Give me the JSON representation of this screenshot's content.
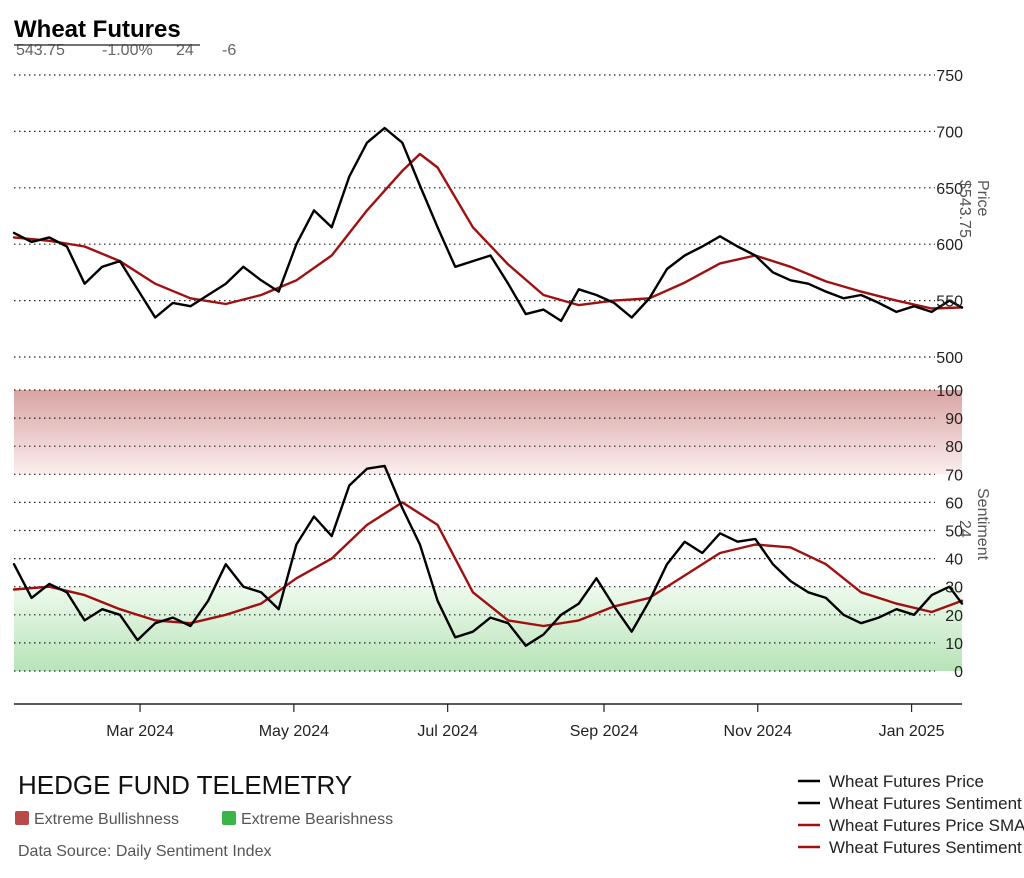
{
  "header": {
    "title": "Wheat Futures",
    "price": "543.75",
    "change_pct": "-1.00%",
    "sentiment": "24",
    "sentiment_change": "-6"
  },
  "colors": {
    "price_line": "#000000",
    "sma_line": "#a01010",
    "extreme_bullishness": "#b94a4a",
    "extreme_bearishness": "#3ab54a",
    "grid": "#222222"
  },
  "footer": {
    "brand": "HEDGE FUND TELEMETRY",
    "key_bullish": "Extreme Bullishness",
    "key_bearish": "Extreme Bearishness",
    "source": "Data Source: Daily Sentiment Index"
  },
  "chart_data": [
    {
      "type": "line",
      "panel": "price",
      "ylabel": "Price",
      "ylabel_value": "$543.75",
      "ylim": [
        500,
        750
      ],
      "yticks": [
        500,
        550,
        600,
        650,
        700,
        750
      ],
      "grid": true,
      "x_range": [
        "2024-01-11",
        "2025-01-21"
      ],
      "xticks": [
        {
          "date": "2024-03-01",
          "label": "Mar 2024"
        },
        {
          "date": "2024-05-01",
          "label": "May 2024"
        },
        {
          "date": "2024-07-01",
          "label": "Jul 2024"
        },
        {
          "date": "2024-09-01",
          "label": "Sep 2024"
        },
        {
          "date": "2024-11-01",
          "label": "Nov 2024"
        },
        {
          "date": "2025-01-01",
          "label": "Jan 2025"
        }
      ],
      "series": [
        {
          "name": "Wheat Futures Price",
          "color": "#000000",
          "points": [
            [
              "2024-01-11",
              610
            ],
            [
              "2024-01-18",
              602
            ],
            [
              "2024-01-25",
              606
            ],
            [
              "2024-02-01",
              598
            ],
            [
              "2024-02-08",
              565
            ],
            [
              "2024-02-15",
              580
            ],
            [
              "2024-02-22",
              585
            ],
            [
              "2024-02-29",
              560
            ],
            [
              "2024-03-07",
              535
            ],
            [
              "2024-03-14",
              548
            ],
            [
              "2024-03-21",
              545
            ],
            [
              "2024-03-28",
              555
            ],
            [
              "2024-04-04",
              565
            ],
            [
              "2024-04-11",
              580
            ],
            [
              "2024-04-18",
              568
            ],
            [
              "2024-04-25",
              558
            ],
            [
              "2024-05-02",
              600
            ],
            [
              "2024-05-09",
              630
            ],
            [
              "2024-05-16",
              615
            ],
            [
              "2024-05-23",
              660
            ],
            [
              "2024-05-30",
              690
            ],
            [
              "2024-06-06",
              703
            ],
            [
              "2024-06-13",
              690
            ],
            [
              "2024-06-20",
              652
            ],
            [
              "2024-06-27",
              615
            ],
            [
              "2024-07-04",
              580
            ],
            [
              "2024-07-11",
              585
            ],
            [
              "2024-07-18",
              590
            ],
            [
              "2024-07-25",
              565
            ],
            [
              "2024-08-01",
              538
            ],
            [
              "2024-08-08",
              542
            ],
            [
              "2024-08-15",
              532
            ],
            [
              "2024-08-22",
              560
            ],
            [
              "2024-08-29",
              555
            ],
            [
              "2024-09-05",
              548
            ],
            [
              "2024-09-12",
              535
            ],
            [
              "2024-09-19",
              552
            ],
            [
              "2024-09-26",
              578
            ],
            [
              "2024-10-03",
              590
            ],
            [
              "2024-10-10",
              598
            ],
            [
              "2024-10-17",
              607
            ],
            [
              "2024-10-24",
              598
            ],
            [
              "2024-10-31",
              590
            ],
            [
              "2024-11-07",
              575
            ],
            [
              "2024-11-14",
              568
            ],
            [
              "2024-11-21",
              565
            ],
            [
              "2024-11-28",
              558
            ],
            [
              "2024-12-05",
              552
            ],
            [
              "2024-12-12",
              555
            ],
            [
              "2024-12-19",
              548
            ],
            [
              "2024-12-26",
              540
            ],
            [
              "2025-01-02",
              545
            ],
            [
              "2025-01-09",
              540
            ],
            [
              "2025-01-16",
              550
            ],
            [
              "2025-01-21",
              543.75
            ]
          ]
        },
        {
          "name": "Wheat Futures Price SMA",
          "color": "#a01010",
          "points": [
            [
              "2024-01-11",
              606
            ],
            [
              "2024-01-25",
              603
            ],
            [
              "2024-02-08",
              598
            ],
            [
              "2024-02-22",
              585
            ],
            [
              "2024-03-07",
              565
            ],
            [
              "2024-03-21",
              552
            ],
            [
              "2024-04-04",
              547
            ],
            [
              "2024-04-18",
              555
            ],
            [
              "2024-05-02",
              568
            ],
            [
              "2024-05-16",
              590
            ],
            [
              "2024-05-30",
              630
            ],
            [
              "2024-06-13",
              665
            ],
            [
              "2024-06-20",
              680
            ],
            [
              "2024-06-27",
              668
            ],
            [
              "2024-07-11",
              615
            ],
            [
              "2024-07-25",
              582
            ],
            [
              "2024-08-08",
              555
            ],
            [
              "2024-08-22",
              546
            ],
            [
              "2024-09-05",
              550
            ],
            [
              "2024-09-19",
              552
            ],
            [
              "2024-10-03",
              566
            ],
            [
              "2024-10-17",
              583
            ],
            [
              "2024-10-31",
              590
            ],
            [
              "2024-11-14",
              580
            ],
            [
              "2024-11-28",
              567
            ],
            [
              "2024-12-12",
              558
            ],
            [
              "2024-12-26",
              550
            ],
            [
              "2025-01-09",
              543
            ],
            [
              "2025-01-21",
              544
            ]
          ]
        }
      ]
    },
    {
      "type": "line",
      "panel": "sentiment",
      "ylabel": "Sentiment",
      "ylabel_value": "24",
      "ylim": [
        0,
        100
      ],
      "yticks": [
        0,
        10,
        20,
        30,
        40,
        50,
        60,
        70,
        80,
        90,
        100
      ],
      "grid": true,
      "zones": [
        {
          "name": "Extreme Bullishness",
          "from": 70,
          "to": 100,
          "color": "#b94a4a"
        },
        {
          "name": "Extreme Bearishness",
          "from": 0,
          "to": 30,
          "color": "#3ab54a"
        }
      ],
      "series": [
        {
          "name": "Wheat Futures Sentiment",
          "color": "#000000",
          "points": [
            [
              "2024-01-11",
              38
            ],
            [
              "2024-01-18",
              26
            ],
            [
              "2024-01-25",
              31
            ],
            [
              "2024-02-01",
              28
            ],
            [
              "2024-02-08",
              18
            ],
            [
              "2024-02-15",
              22
            ],
            [
              "2024-02-22",
              20
            ],
            [
              "2024-02-29",
              11
            ],
            [
              "2024-03-07",
              17
            ],
            [
              "2024-03-14",
              19
            ],
            [
              "2024-03-21",
              16
            ],
            [
              "2024-03-28",
              25
            ],
            [
              "2024-04-04",
              38
            ],
            [
              "2024-04-11",
              30
            ],
            [
              "2024-04-18",
              28
            ],
            [
              "2024-04-25",
              22
            ],
            [
              "2024-05-02",
              45
            ],
            [
              "2024-05-09",
              55
            ],
            [
              "2024-05-16",
              48
            ],
            [
              "2024-05-23",
              66
            ],
            [
              "2024-05-30",
              72
            ],
            [
              "2024-06-06",
              73
            ],
            [
              "2024-06-13",
              58
            ],
            [
              "2024-06-20",
              45
            ],
            [
              "2024-06-27",
              25
            ],
            [
              "2024-07-04",
              12
            ],
            [
              "2024-07-11",
              14
            ],
            [
              "2024-07-18",
              19
            ],
            [
              "2024-07-25",
              17
            ],
            [
              "2024-08-01",
              9
            ],
            [
              "2024-08-08",
              13
            ],
            [
              "2024-08-15",
              20
            ],
            [
              "2024-08-22",
              24
            ],
            [
              "2024-08-29",
              33
            ],
            [
              "2024-09-05",
              23
            ],
            [
              "2024-09-12",
              14
            ],
            [
              "2024-09-19",
              25
            ],
            [
              "2024-09-26",
              38
            ],
            [
              "2024-10-03",
              46
            ],
            [
              "2024-10-10",
              42
            ],
            [
              "2024-10-17",
              49
            ],
            [
              "2024-10-24",
              46
            ],
            [
              "2024-10-31",
              47
            ],
            [
              "2024-11-07",
              38
            ],
            [
              "2024-11-14",
              32
            ],
            [
              "2024-11-21",
              28
            ],
            [
              "2024-11-28",
              26
            ],
            [
              "2024-12-05",
              20
            ],
            [
              "2024-12-12",
              17
            ],
            [
              "2024-12-19",
              19
            ],
            [
              "2024-12-26",
              22
            ],
            [
              "2025-01-02",
              20
            ],
            [
              "2025-01-09",
              27
            ],
            [
              "2025-01-16",
              30
            ],
            [
              "2025-01-21",
              24
            ]
          ]
        },
        {
          "name": "Wheat Futures Sentiment SMA",
          "color": "#a01010",
          "points": [
            [
              "2024-01-11",
              29
            ],
            [
              "2024-01-25",
              30
            ],
            [
              "2024-02-08",
              27
            ],
            [
              "2024-02-22",
              22
            ],
            [
              "2024-03-07",
              18
            ],
            [
              "2024-03-21",
              17
            ],
            [
              "2024-04-04",
              20
            ],
            [
              "2024-04-18",
              24
            ],
            [
              "2024-05-02",
              33
            ],
            [
              "2024-05-16",
              40
            ],
            [
              "2024-05-30",
              52
            ],
            [
              "2024-06-13",
              60
            ],
            [
              "2024-06-27",
              52
            ],
            [
              "2024-07-11",
              28
            ],
            [
              "2024-07-25",
              18
            ],
            [
              "2024-08-08",
              16
            ],
            [
              "2024-08-22",
              18
            ],
            [
              "2024-09-05",
              23
            ],
            [
              "2024-09-19",
              26
            ],
            [
              "2024-10-03",
              34
            ],
            [
              "2024-10-17",
              42
            ],
            [
              "2024-10-31",
              45
            ],
            [
              "2024-11-14",
              44
            ],
            [
              "2024-11-28",
              38
            ],
            [
              "2024-12-12",
              28
            ],
            [
              "2024-12-26",
              24
            ],
            [
              "2025-01-09",
              21
            ],
            [
              "2025-01-21",
              25
            ]
          ]
        }
      ]
    }
  ]
}
